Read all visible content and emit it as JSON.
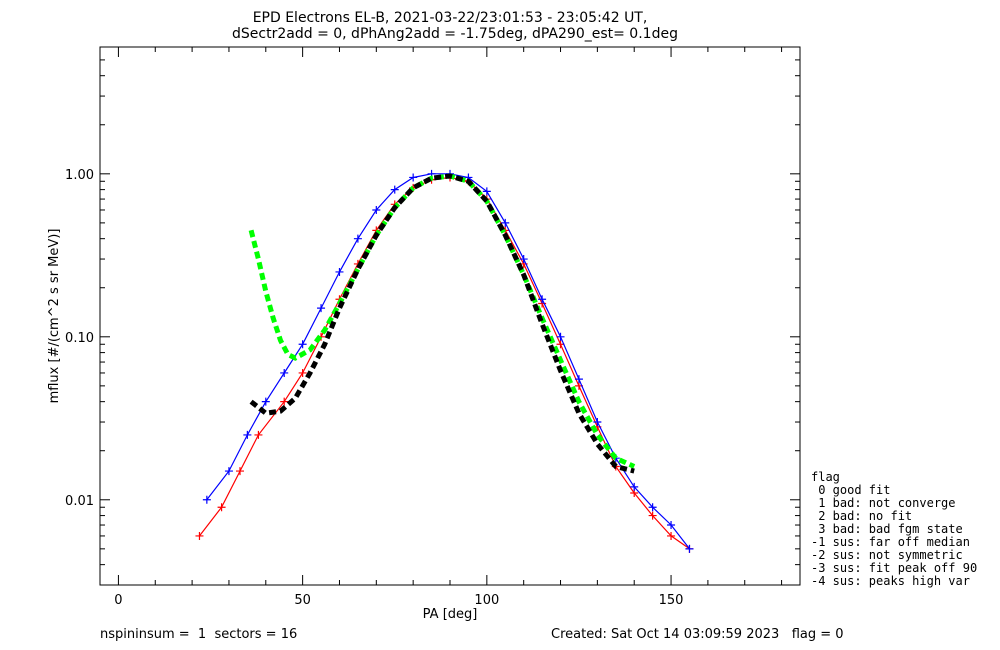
{
  "chart_data": {
    "type": "line",
    "title": "EPD Electrons EL-B, 2021-03-22/23:01:53 - 23:05:42 UT,",
    "subtitle": "dSectr2add = 0, dPhAng2add = -1.75deg, dPA290_est=   0.1deg",
    "xlabel": "PA [deg]",
    "ylabel": "mflux [#/(cm^2 s sr MeV)]",
    "xlim": [
      -5,
      185
    ],
    "ylim": [
      0.003,
      6.0
    ],
    "yscale": "log",
    "x_ticks": [
      0,
      50,
      100,
      150
    ],
    "x_tick_labels": [
      "0",
      "50",
      "100",
      "150"
    ],
    "y_ticks": [
      0.01,
      0.1,
      1.0
    ],
    "y_tick_labels": [
      "0.01",
      "0.10",
      "1.00"
    ],
    "grid": false,
    "series": [
      {
        "color": "#ff0000",
        "x": [
          22,
          28,
          33,
          38,
          45,
          50,
          55,
          60,
          65,
          70,
          75,
          80,
          85,
          90,
          95,
          100,
          105,
          110,
          115,
          120,
          125,
          130,
          135,
          140,
          145,
          150,
          155
        ],
        "values": [
          0.006,
          0.009,
          0.015,
          0.025,
          0.04,
          0.06,
          0.1,
          0.17,
          0.28,
          0.45,
          0.65,
          0.82,
          0.92,
          0.95,
          0.9,
          0.7,
          0.45,
          0.28,
          0.16,
          0.09,
          0.05,
          0.028,
          0.016,
          0.011,
          0.008,
          0.006,
          0.005
        ]
      },
      {
        "color": "#0000ff",
        "x": [
          24,
          30,
          35,
          40,
          45,
          50,
          55,
          60,
          65,
          70,
          75,
          80,
          85,
          90,
          95,
          100,
          105,
          110,
          115,
          120,
          125,
          130,
          135,
          140,
          145,
          150,
          155
        ],
        "values": [
          0.01,
          0.015,
          0.025,
          0.04,
          0.06,
          0.09,
          0.15,
          0.25,
          0.4,
          0.6,
          0.8,
          0.95,
          1.0,
          1.0,
          0.95,
          0.78,
          0.5,
          0.3,
          0.17,
          0.1,
          0.055,
          0.03,
          0.018,
          0.012,
          0.009,
          0.007,
          0.005
        ]
      },
      {
        "color": "#00ff00",
        "style": "dashed",
        "x": [
          36,
          38,
          40,
          42,
          44,
          46,
          48,
          52,
          56,
          60,
          65,
          70,
          75,
          80,
          85,
          90,
          95,
          100,
          105,
          110,
          115,
          120,
          125,
          130,
          135,
          140
        ],
        "values": [
          0.45,
          0.3,
          0.19,
          0.13,
          0.095,
          0.078,
          0.074,
          0.083,
          0.11,
          0.16,
          0.26,
          0.42,
          0.62,
          0.82,
          0.94,
          0.97,
          0.9,
          0.68,
          0.42,
          0.24,
          0.13,
          0.072,
          0.04,
          0.025,
          0.018,
          0.016
        ]
      },
      {
        "color": "#000000",
        "style": "dashed",
        "x": [
          36,
          40,
          44,
          48,
          52,
          56,
          60,
          65,
          70,
          75,
          80,
          85,
          90,
          95,
          100,
          105,
          110,
          115,
          120,
          125,
          130,
          135,
          140
        ],
        "values": [
          0.04,
          0.034,
          0.035,
          0.042,
          0.06,
          0.09,
          0.15,
          0.26,
          0.42,
          0.62,
          0.82,
          0.94,
          0.97,
          0.9,
          0.68,
          0.42,
          0.24,
          0.12,
          0.062,
          0.034,
          0.022,
          0.016,
          0.015
        ]
      }
    ]
  },
  "legend": {
    "title": "flag",
    "entries": [
      " 0 good fit",
      " 1 bad: not converge",
      " 2 bad: no fit",
      " 3 bad: bad fgm state",
      "-1 sus: far off median",
      "-2 sus: not symmetric",
      "-3 sus: fit peak off 90",
      "-4 sus: peaks high var"
    ]
  },
  "footer": {
    "left": "nspininsum =  1  sectors = 16",
    "right": "Created: Sat Oct 14 03:09:59 2023   flag = 0"
  }
}
